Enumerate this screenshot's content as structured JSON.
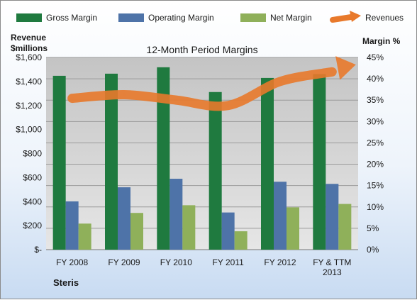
{
  "chart_data": {
    "type": "bar",
    "title": "12-Month Period Margins",
    "company": "Steris",
    "left_axis_label_line1": "Revenue",
    "left_axis_label_line2": "$millions",
    "right_axis_label": "Margin %",
    "categories": [
      "FY 2008",
      "FY 2009",
      "FY 2010",
      "FY 2011",
      "FY 2012",
      "FY & TTM"
    ],
    "category_line2": [
      "",
      "",
      "",
      "",
      "",
      "2013"
    ],
    "left_ticks": [
      "$-",
      "$200",
      "$400",
      "$600",
      "$800",
      "$1,000",
      "$1,200",
      "$1,400",
      "$1,600"
    ],
    "right_ticks": [
      "0%",
      "5%",
      "10%",
      "15%",
      "20%",
      "25%",
      "30%",
      "35%",
      "40%",
      "45%"
    ],
    "ylim_margin_pct": [
      0,
      45
    ],
    "ylim_revenue": [
      0,
      1600
    ],
    "grid": true,
    "legend_position": "top",
    "series": [
      {
        "name": "Gross Margin",
        "color": "#1f7a3f",
        "values": [
          40.7,
          41.2,
          42.7,
          36.9,
          40.2,
          41.1
        ]
      },
      {
        "name": "Operating Margin",
        "color": "#4e73a8",
        "values": [
          11.3,
          14.6,
          16.6,
          8.7,
          15.9,
          15.4
        ]
      },
      {
        "name": "Net Margin",
        "color": "#8fb05a",
        "values": [
          6.1,
          8.6,
          10.4,
          4.3,
          9.9,
          10.7
        ]
      }
    ],
    "revenue_series": {
      "name": "Revenues",
      "color": "#e8792b",
      "values": [
        1260,
        1290,
        1245,
        1200,
        1400,
        1480
      ]
    }
  }
}
